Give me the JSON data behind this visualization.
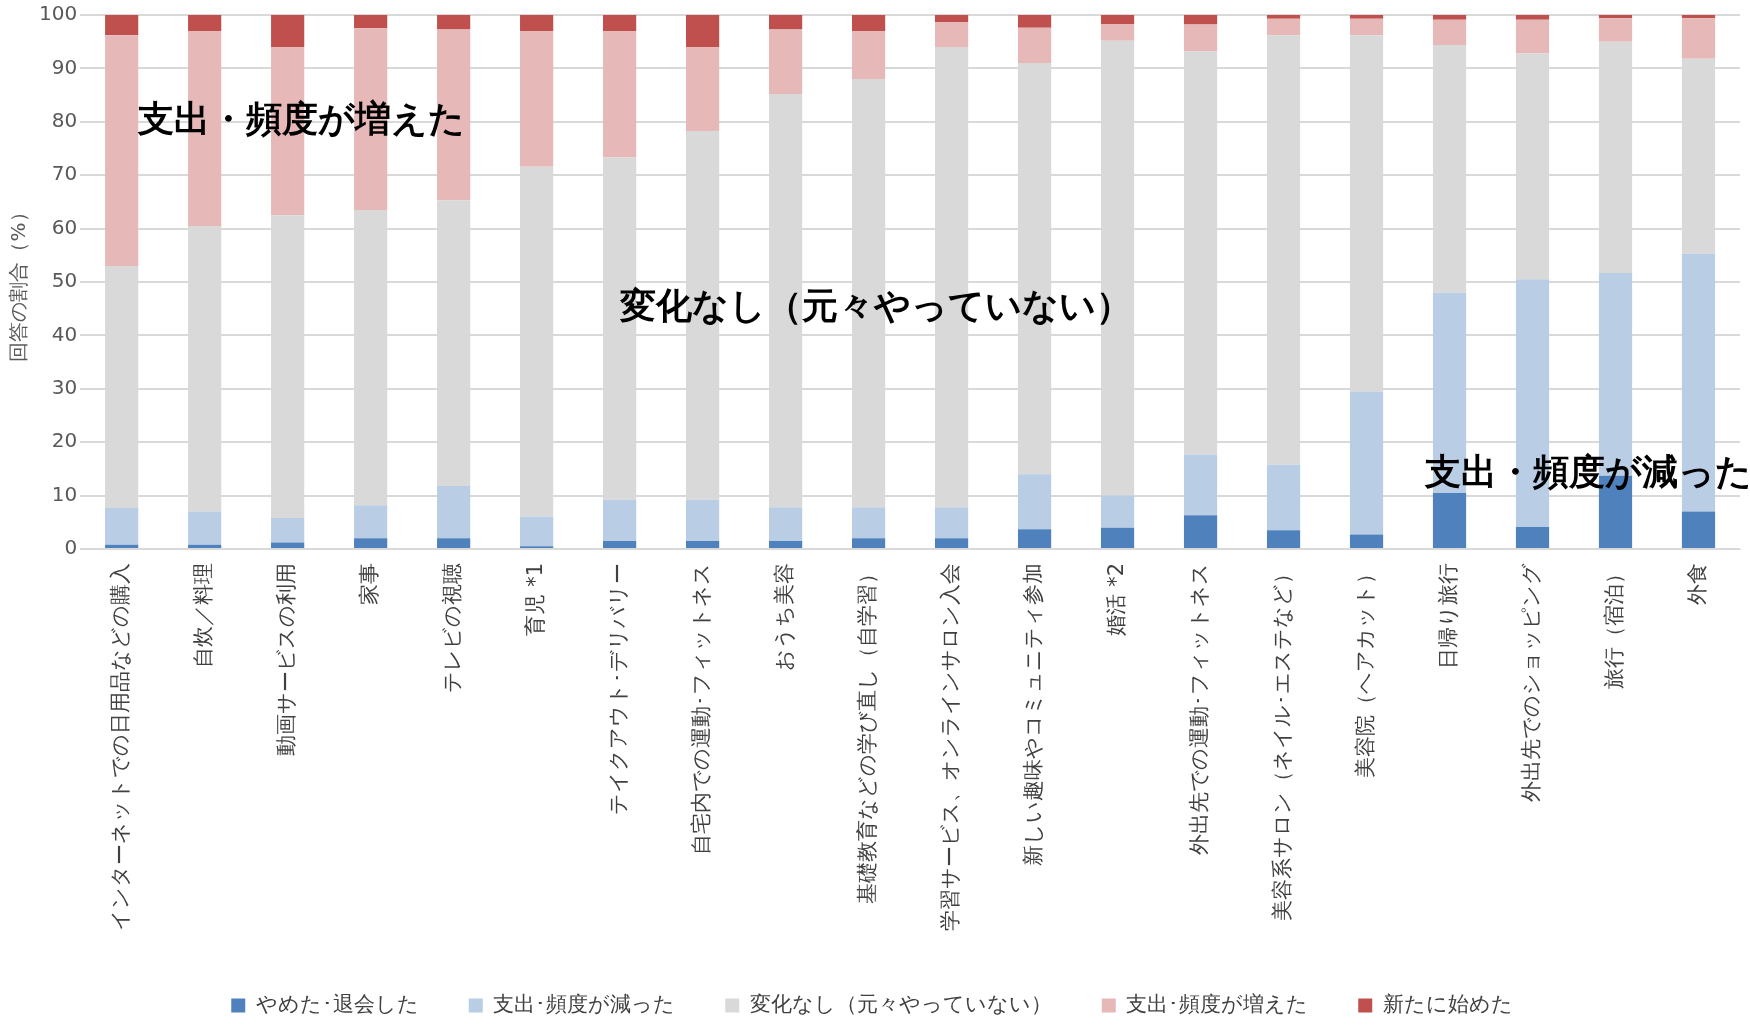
{
  "chart_data": {
    "type": "bar",
    "stacked": true,
    "ylabel": "回答の割合（%）",
    "categories": [
      "インターネットでの日用品などの購入",
      "自炊／料理",
      "動画サービスの利用",
      "家事",
      "テレビの視聴",
      "育児 *1",
      "テイクアウト･デリバリー",
      "自宅内での運動･フィットネス",
      "おうち美容",
      "基礎教育などの学び直し（自学習）",
      "学習サービス、オンラインサロン入会",
      "新しい趣味やコミュニティ参加",
      "婚活 *2",
      "外出先での運動･フィットネス",
      "美容系サロン（ネイル･エステなど）",
      "美容院（ヘアカット）",
      "日帰り旅行",
      "外出先でのショッピング",
      "旅行（宿泊）",
      "外食"
    ],
    "series": [
      {
        "name": "やめた･退会した",
        "color": "#4f81bd",
        "values": [
          0.8,
          0.8,
          1.2,
          2,
          2,
          0.5,
          1.5,
          1.5,
          1.5,
          2,
          2,
          3.7,
          4,
          6.3,
          3.5,
          2.7,
          10.5,
          4.1,
          13.7,
          7
        ]
      },
      {
        "name": "支出･頻度が減った",
        "color": "#b9cde5",
        "values": [
          6.9,
          6.2,
          4.6,
          6.2,
          9.8,
          5.6,
          7.7,
          7.7,
          6.3,
          5.8,
          5.8,
          10.3,
          6,
          11.4,
          12.3,
          26.8,
          37.5,
          46.4,
          38,
          48.3
        ]
      },
      {
        "name": "変化なし（元々やっていない）",
        "color": "#d9d9d9",
        "values": [
          45.3,
          53.5,
          56.7,
          55.3,
          53.5,
          65.5,
          64.1,
          69.1,
          77.4,
          80.2,
          86.2,
          77,
          85.2,
          75.5,
          80.4,
          66.7,
          46.4,
          42.3,
          43.3,
          36.5
        ]
      },
      {
        "name": "支出･頻度が増えた",
        "color": "#e6b9b8",
        "values": [
          43.2,
          36.5,
          31.5,
          34,
          32,
          25.4,
          23.7,
          15.7,
          12.1,
          9,
          4.7,
          6.6,
          3.1,
          5,
          3.1,
          3.1,
          4.7,
          6.3,
          4.4,
          7.6
        ]
      },
      {
        "name": "新たに始めた",
        "color": "#c0504d",
        "values": [
          3.8,
          3,
          6,
          2.5,
          2.7,
          3,
          3,
          6,
          2.7,
          3,
          1.3,
          2.4,
          1.7,
          1.8,
          0.7,
          0.7,
          0.9,
          0.9,
          0.6,
          0.6
        ]
      }
    ],
    "ylim": [
      0,
      100
    ],
    "yticks": [
      0,
      10,
      20,
      30,
      40,
      50,
      60,
      70,
      80,
      90,
      100
    ],
    "grid": "y",
    "legend": "bottom",
    "annotations": [
      "支出・頻度が増えた",
      "変化なし（元々やっていない）",
      "支出・頻度が減った"
    ]
  }
}
